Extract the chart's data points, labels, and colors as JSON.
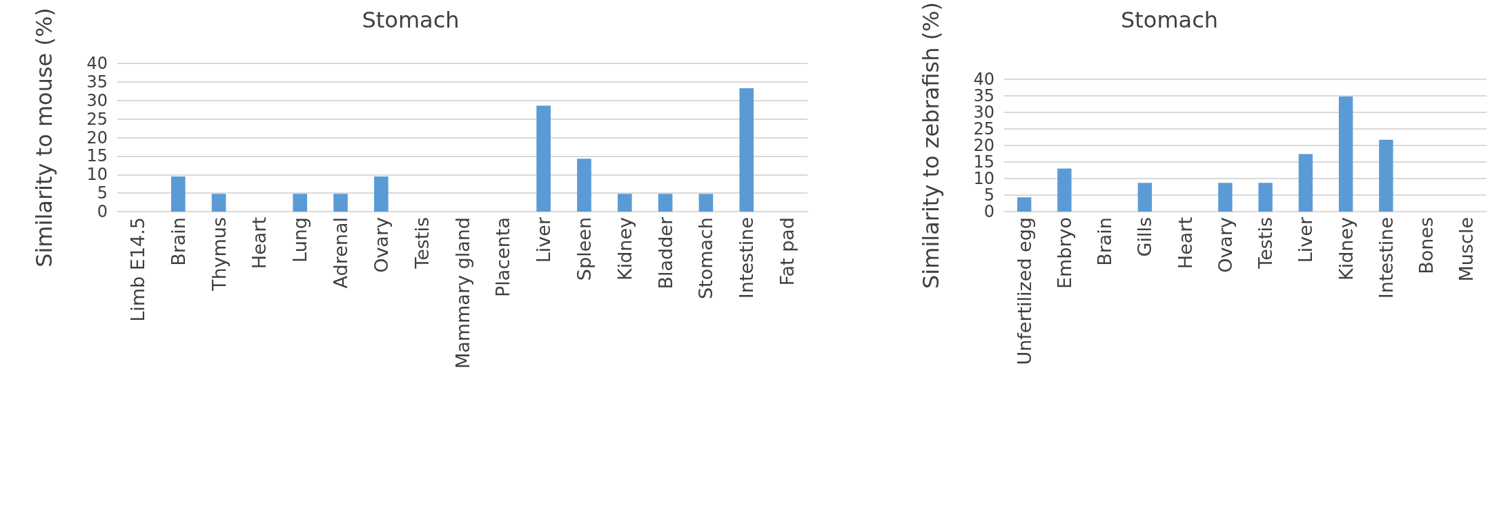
{
  "chart_data": [
    {
      "type": "bar",
      "title": "Stomach",
      "ylabel": "Similarity to mouse (%)",
      "categories": [
        "Limb E14.5",
        "Brain",
        "Thymus",
        "Heart",
        "Lung",
        "Adrenal",
        "Ovary",
        "Testis",
        "Mammary gland",
        "Placenta",
        "Liver",
        "Spleen",
        "Kidney",
        "Bladder",
        "Stomach",
        "Intestine",
        "Fat pad"
      ],
      "values": [
        0,
        9.5,
        4.8,
        0,
        4.8,
        4.8,
        9.5,
        0,
        0,
        0,
        28.6,
        14.3,
        4.8,
        4.8,
        4.8,
        33.3,
        0
      ],
      "color": "#5b9bd5",
      "ylim": [
        0,
        40
      ],
      "yticks": [
        0,
        5,
        10,
        15,
        20,
        25,
        30,
        35,
        40
      ],
      "grid": "y"
    },
    {
      "type": "bar",
      "title": "Stomach",
      "ylabel": "Similarity to zebrafish (%)",
      "categories": [
        "Unfertilized egg",
        "Embryo",
        "Brain",
        "Gills",
        "Heart",
        "Ovary",
        "Testis",
        "Liver",
        "Kidney",
        "Intestine",
        "Bones",
        "Muscle"
      ],
      "values": [
        4.3,
        13,
        0,
        8.7,
        0,
        8.7,
        8.7,
        17.4,
        34.8,
        21.7,
        0,
        0
      ],
      "color": "#5b9bd5",
      "ylim": [
        0,
        40
      ],
      "yticks": [
        0,
        5,
        10,
        15,
        20,
        25,
        30,
        35,
        40
      ],
      "grid": "y"
    }
  ]
}
